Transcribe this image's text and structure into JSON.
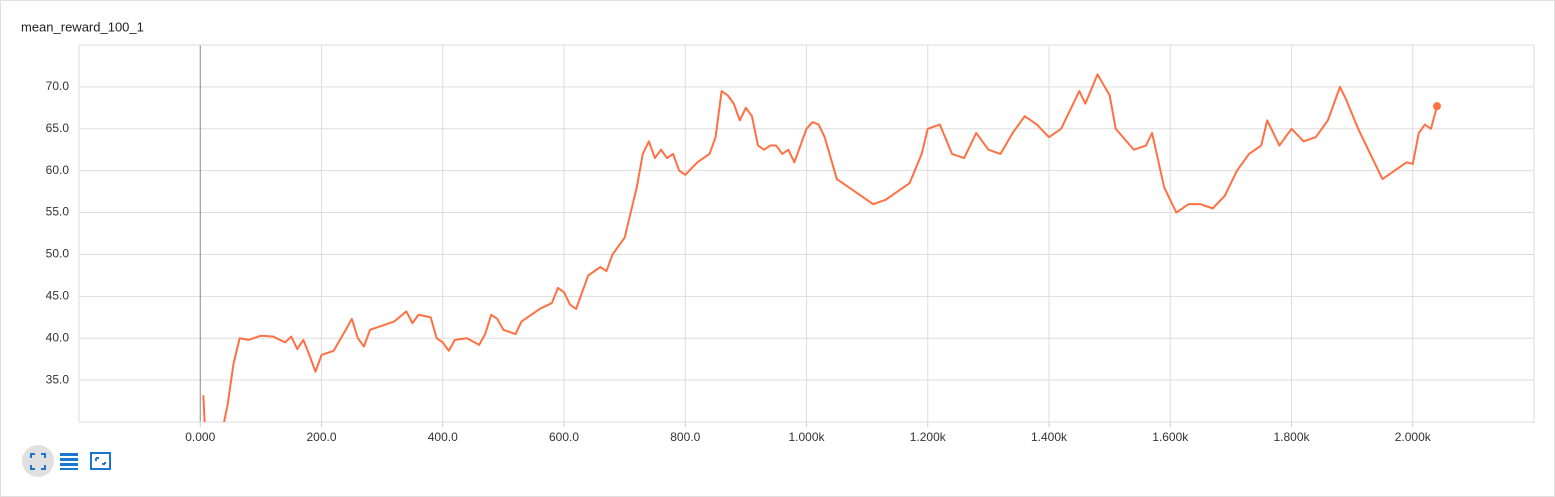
{
  "chart_data": {
    "type": "line",
    "title": "mean_reward_100_1",
    "color": "#ff7043",
    "grid": true,
    "xlim": [
      -200,
      2200
    ],
    "ylim": [
      30,
      75
    ],
    "xticks": [
      {
        "value": 0,
        "label": "0.000"
      },
      {
        "value": 200,
        "label": "200.0"
      },
      {
        "value": 400,
        "label": "400.0"
      },
      {
        "value": 600,
        "label": "600.0"
      },
      {
        "value": 800,
        "label": "800.0"
      },
      {
        "value": 1000,
        "label": "1.000k"
      },
      {
        "value": 1200,
        "label": "1.200k"
      },
      {
        "value": 1400,
        "label": "1.400k"
      },
      {
        "value": 1600,
        "label": "1.600k"
      },
      {
        "value": 1800,
        "label": "1.800k"
      },
      {
        "value": 2000,
        "label": "2.000k"
      }
    ],
    "yticks": [
      {
        "value": 35,
        "label": "35.0"
      },
      {
        "value": 40,
        "label": "40.0"
      },
      {
        "value": 45,
        "label": "45.0"
      },
      {
        "value": 50,
        "label": "50.0"
      },
      {
        "value": 55,
        "label": "55.0"
      },
      {
        "value": 60,
        "label": "60.0"
      },
      {
        "value": 65,
        "label": "65.0"
      },
      {
        "value": 70,
        "label": "70.0"
      }
    ],
    "x": [
      5,
      8,
      35,
      45,
      55,
      65,
      80,
      100,
      120,
      140,
      150,
      160,
      170,
      180,
      190,
      200,
      220,
      240,
      250,
      260,
      270,
      280,
      300,
      320,
      340,
      350,
      360,
      380,
      390,
      400,
      410,
      420,
      440,
      460,
      470,
      480,
      490,
      500,
      520,
      530,
      540,
      560,
      580,
      590,
      600,
      610,
      620,
      640,
      660,
      670,
      680,
      700,
      710,
      720,
      730,
      740,
      750,
      760,
      770,
      780,
      790,
      800,
      820,
      840,
      850,
      860,
      870,
      880,
      890,
      900,
      910,
      920,
      930,
      940,
      950,
      960,
      970,
      980,
      990,
      1000,
      1010,
      1020,
      1030,
      1050,
      1070,
      1090,
      1110,
      1130,
      1150,
      1170,
      1190,
      1200,
      1220,
      1240,
      1260,
      1280,
      1300,
      1320,
      1340,
      1360,
      1380,
      1400,
      1420,
      1440,
      1450,
      1460,
      1480,
      1500,
      1510,
      1540,
      1560,
      1570,
      1590,
      1610,
      1630,
      1650,
      1670,
      1690,
      1710,
      1730,
      1750,
      1760,
      1780,
      1800,
      1820,
      1840,
      1860,
      1880,
      1890,
      1910,
      1930,
      1950,
      1970,
      1990,
      2000,
      2010,
      2020,
      2030,
      2040
    ],
    "values": [
      33.2,
      29,
      28.5,
      32,
      37,
      40,
      39.8,
      40.3,
      40.2,
      39.5,
      40.2,
      38.7,
      39.8,
      38,
      36,
      38,
      38.5,
      41,
      42.3,
      40,
      39,
      41,
      41.5,
      42,
      43.2,
      41.8,
      42.8,
      42.5,
      40,
      39.5,
      38.5,
      39.8,
      40,
      39.2,
      40.5,
      42.8,
      42.3,
      41,
      40.5,
      42,
      42.5,
      43.5,
      44.2,
      46,
      45.5,
      44,
      43.5,
      47.5,
      48.5,
      48,
      50,
      52,
      55,
      58,
      62,
      63.5,
      61.5,
      62.5,
      61.5,
      62,
      60,
      59.5,
      61,
      62,
      64,
      69.5,
      69,
      68,
      66,
      67.5,
      66.5,
      63,
      62.5,
      63,
      63,
      62,
      62.5,
      61,
      63,
      65,
      65.8,
      65.5,
      64,
      59,
      58,
      57,
      56,
      56.5,
      57.5,
      58.5,
      62,
      65,
      65.5,
      62,
      61.5,
      64.5,
      62.5,
      62,
      64.5,
      66.5,
      65.5,
      64,
      65,
      68,
      69.5,
      68,
      71.5,
      69,
      65,
      62.5,
      63,
      64.5,
      58,
      55,
      56,
      56,
      55.5,
      57,
      60,
      62,
      63,
      66,
      63,
      65,
      63.5,
      64,
      66,
      70,
      68.5,
      65,
      62,
      59,
      60,
      61,
      60.8,
      64.5,
      65.5,
      65,
      67.7
    ]
  }
}
